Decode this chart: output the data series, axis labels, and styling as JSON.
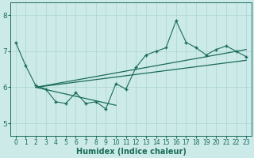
{
  "xlabel": "Humidex (Indice chaleur)",
  "bg_color": "#cceae8",
  "line_color": "#1a6b5a",
  "xlim": [
    -0.5,
    23.5
  ],
  "ylim": [
    4.65,
    8.35
  ],
  "yticks": [
    5,
    6,
    7,
    8
  ],
  "xticks": [
    0,
    1,
    2,
    3,
    4,
    5,
    6,
    7,
    8,
    9,
    10,
    11,
    12,
    13,
    14,
    15,
    16,
    17,
    18,
    19,
    20,
    21,
    22,
    23
  ],
  "data_x": [
    0,
    1,
    2,
    3,
    4,
    5,
    6,
    7,
    8,
    9,
    10,
    11,
    12,
    13,
    14,
    15,
    16,
    17,
    18,
    19,
    20,
    21,
    22,
    23
  ],
  "data_y": [
    7.25,
    6.6,
    6.05,
    5.95,
    5.6,
    5.55,
    5.85,
    5.55,
    5.6,
    5.4,
    6.1,
    5.95,
    6.55,
    6.9,
    7.0,
    7.1,
    7.85,
    7.25,
    7.1,
    6.9,
    7.05,
    7.15,
    7.0,
    6.85
  ],
  "env_line1_x": [
    2,
    23
  ],
  "env_line1_y": [
    6.0,
    7.05
  ],
  "env_line2_x": [
    2,
    23
  ],
  "env_line2_y": [
    6.0,
    6.75
  ],
  "env_line3_x": [
    2,
    10
  ],
  "env_line3_y": [
    6.0,
    5.5
  ],
  "grid_color": "#aad4d0",
  "marker_size": 6,
  "tick_fontsize": 5.5,
  "xlabel_fontsize": 7
}
